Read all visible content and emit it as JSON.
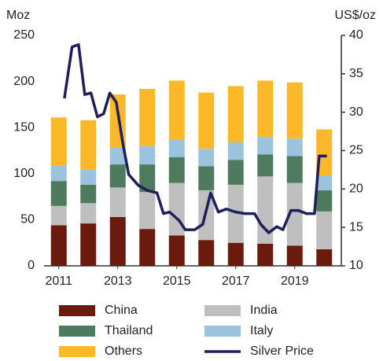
{
  "chart_data": {
    "type": "bar-line",
    "y_label": "Moz",
    "y2_label": "US$/oz",
    "x": [
      2011,
      2012,
      2013,
      2014,
      2015,
      2016,
      2017,
      2018,
      2019,
      2020
    ],
    "xlim": [
      2010.5,
      2020.5
    ],
    "xticks": [
      2011,
      2013,
      2015,
      2017,
      2019
    ],
    "ylim": [
      0,
      250
    ],
    "yticks": [
      0,
      50,
      100,
      150,
      200,
      250
    ],
    "y2lim": [
      10,
      40
    ],
    "y2ticks": [
      10,
      15,
      20,
      25,
      30,
      35,
      40
    ],
    "grid": false,
    "series": [
      {
        "name": "China",
        "color": "#6b1a0e",
        "values": [
          44,
          46,
          53,
          40,
          33,
          28,
          25,
          24,
          22,
          18
        ]
      },
      {
        "name": "India",
        "color": "#bfbfbf",
        "values": [
          21,
          22,
          32,
          40,
          57,
          54,
          63,
          73,
          68,
          41
        ]
      },
      {
        "name": "Thailand",
        "color": "#4e7a5e",
        "values": [
          27,
          20,
          25,
          30,
          28,
          26,
          27,
          24,
          29,
          23
        ]
      },
      {
        "name": "Italy",
        "color": "#9cc3de",
        "values": [
          17,
          16,
          18,
          20,
          19,
          19,
          19,
          19,
          19,
          16
        ]
      },
      {
        "name": "Others",
        "color": "#fbb829",
        "values": [
          52,
          54,
          58,
          62,
          64,
          61,
          61,
          61,
          61,
          50
        ]
      },
      {
        "name": "Silver Price",
        "color": "#1f1f5c",
        "type": "line",
        "axis": "y2",
        "x": [
          2011.19,
          2011.45,
          2011.67,
          2011.88,
          2012.09,
          2012.31,
          2012.52,
          2012.73,
          2012.95,
          2013.16,
          2013.37,
          2013.69,
          2014.01,
          2014.33,
          2014.55,
          2014.76,
          2015.08,
          2015.29,
          2015.61,
          2015.88,
          2016.15,
          2016.41,
          2016.68,
          2017.0,
          2017.32,
          2017.64,
          2017.85,
          2018.12,
          2018.39,
          2018.6,
          2018.87,
          2019.13,
          2019.4,
          2019.67,
          2019.83,
          2020.09
        ],
        "values": [
          31.8,
          38.5,
          38.8,
          32.3,
          32.5,
          29.4,
          29.8,
          32.5,
          31.3,
          26.2,
          21.9,
          20.5,
          19.8,
          19.5,
          16.8,
          17.0,
          15.9,
          14.7,
          14.7,
          15.4,
          19.5,
          17.0,
          17.4,
          17.0,
          16.8,
          16.8,
          15.4,
          14.3,
          15.1,
          14.7,
          17.2,
          17.2,
          16.8,
          16.8,
          24.3,
          24.3
        ]
      }
    ]
  }
}
